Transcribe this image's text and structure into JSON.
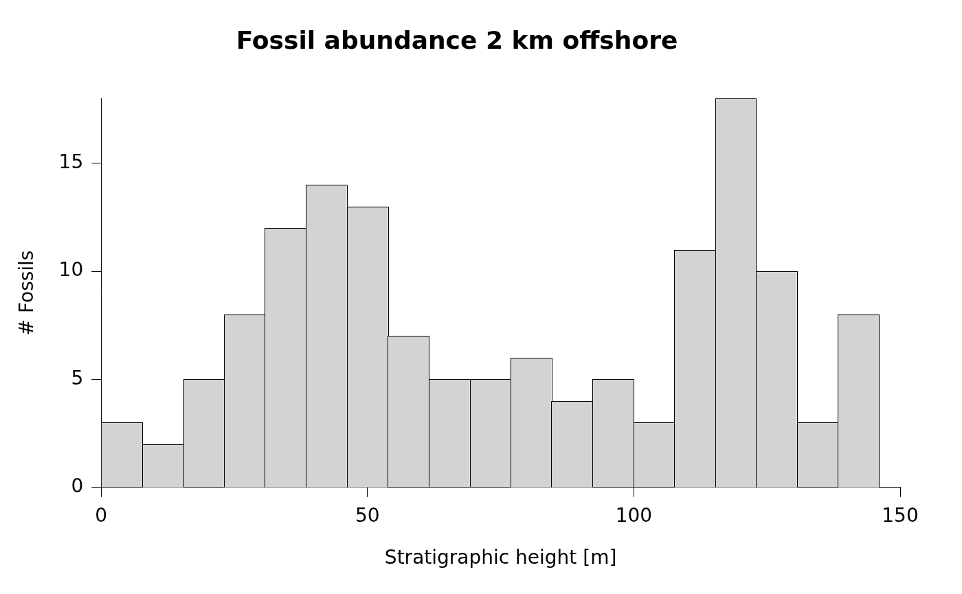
{
  "chart_data": {
    "type": "histogram",
    "title": "Fossil abundance 2 km offshore",
    "x_label": "Stratigraphic height [m]",
    "y_label": "# Fossils",
    "bins": [
      0,
      7.7,
      15.4,
      23.1,
      30.7,
      38.4,
      46.1,
      53.8,
      61.5,
      69.2,
      76.8,
      84.5,
      92.2,
      99.9,
      107.6,
      115.3,
      122.9,
      130.6,
      138.3,
      146
    ],
    "values": [
      3,
      2,
      5,
      8,
      12,
      14,
      13,
      7,
      5,
      5,
      6,
      4,
      5,
      3,
      11,
      18,
      10,
      3,
      8
    ],
    "color": "#d3d3d3",
    "xlim": [
      0,
      150
    ],
    "xticks": [
      0,
      50,
      100,
      150
    ],
    "ylim": [
      0,
      18
    ],
    "yticks": [
      0,
      5,
      10,
      15
    ],
    "grid": false
  }
}
